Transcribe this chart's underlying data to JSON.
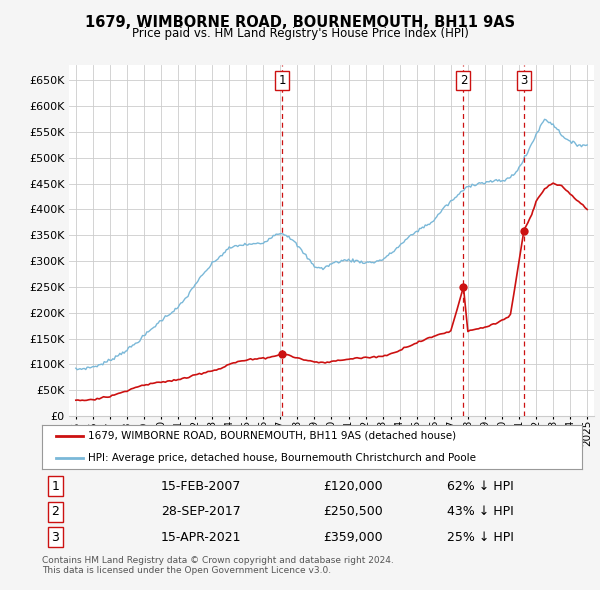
{
  "title": "1679, WIMBORNE ROAD, BOURNEMOUTH, BH11 9AS",
  "subtitle": "Price paid vs. HM Land Registry's House Price Index (HPI)",
  "ylim": [
    0,
    680000
  ],
  "yticks": [
    0,
    50000,
    100000,
    150000,
    200000,
    250000,
    300000,
    350000,
    400000,
    450000,
    500000,
    550000,
    600000,
    650000
  ],
  "hpi_color": "#7ab8d8",
  "sale_color": "#cc1111",
  "background_color": "#f5f5f5",
  "plot_bg_color": "#ffffff",
  "legend_label_sale": "1679, WIMBORNE ROAD, BOURNEMOUTH, BH11 9AS (detached house)",
  "legend_label_hpi": "HPI: Average price, detached house, Bournemouth Christchurch and Poole",
  "transactions": [
    {
      "number": 1,
      "date_label": "15-FEB-2007",
      "price": 120000,
      "price_str": "£120,000",
      "pct": "62%",
      "x_year": 2007.12
    },
    {
      "number": 2,
      "date_label": "28-SEP-2017",
      "price": 250500,
      "price_str": "£250,500",
      "pct": "43%",
      "x_year": 2017.74
    },
    {
      "number": 3,
      "date_label": "15-APR-2021",
      "price": 359000,
      "price_str": "£359,000",
      "pct": "25%",
      "x_year": 2021.29
    }
  ],
  "footer_text": "Contains HM Land Registry data © Crown copyright and database right 2024.\nThis data is licensed under the Open Government Licence v3.0.",
  "xmin": 1994.6,
  "xmax": 2025.4,
  "hpi_years": [
    1995,
    1995.5,
    1996,
    1996.5,
    1997,
    1997.5,
    1998,
    1998.5,
    1999,
    1999.5,
    2000,
    2000.5,
    2001,
    2001.5,
    2002,
    2002.5,
    2003,
    2003.5,
    2004,
    2004.5,
    2005,
    2005.5,
    2006,
    2006.5,
    2007,
    2007.5,
    2008,
    2008.5,
    2009,
    2009.5,
    2010,
    2010.5,
    2011,
    2011.5,
    2012,
    2012.5,
    2013,
    2013.5,
    2014,
    2014.5,
    2015,
    2015.5,
    2016,
    2016.5,
    2017,
    2017.5,
    2018,
    2018.5,
    2019,
    2019.5,
    2020,
    2020.5,
    2021,
    2021.5,
    2022,
    2022.5,
    2023,
    2023.5,
    2024,
    2024.5,
    2025
  ],
  "hpi_vals": [
    90000,
    92000,
    95000,
    100000,
    108000,
    118000,
    128000,
    140000,
    155000,
    170000,
    185000,
    198000,
    210000,
    230000,
    255000,
    275000,
    295000,
    310000,
    325000,
    330000,
    332000,
    333000,
    335000,
    348000,
    355000,
    348000,
    330000,
    310000,
    290000,
    285000,
    295000,
    300000,
    302000,
    300000,
    297000,
    298000,
    303000,
    315000,
    330000,
    345000,
    358000,
    368000,
    378000,
    400000,
    415000,
    430000,
    445000,
    450000,
    452000,
    455000,
    455000,
    462000,
    480000,
    510000,
    545000,
    575000,
    565000,
    545000,
    530000,
    525000,
    525000
  ],
  "sale_years": [
    1995,
    1995.5,
    1996,
    1996.5,
    1997,
    1997.5,
    1998,
    1998.5,
    1999,
    1999.5,
    2000,
    2000.5,
    2001,
    2001.5,
    2002,
    2002.5,
    2003,
    2003.5,
    2004,
    2004.5,
    2005,
    2005.5,
    2006,
    2006.5,
    2007.12,
    2007.5,
    2008,
    2008.5,
    2009,
    2009.5,
    2010,
    2010.5,
    2011,
    2011.5,
    2012,
    2012.5,
    2013,
    2013.5,
    2014,
    2014.5,
    2015,
    2015.5,
    2016,
    2016.5,
    2017,
    2017.74,
    2018,
    2018.5,
    2019,
    2019.5,
    2020,
    2020.5,
    2021.29,
    2021.75,
    2022,
    2022.5,
    2023,
    2023.5,
    2024,
    2024.5,
    2025
  ],
  "sale_vals": [
    30000,
    30500,
    32000,
    35000,
    38000,
    43000,
    50000,
    55000,
    60000,
    63000,
    65000,
    68000,
    70000,
    74000,
    80000,
    84000,
    88000,
    92000,
    100000,
    105000,
    108000,
    110000,
    112000,
    115000,
    120000,
    118000,
    112000,
    108000,
    105000,
    103000,
    105000,
    108000,
    110000,
    112000,
    113000,
    114000,
    116000,
    120000,
    128000,
    135000,
    142000,
    148000,
    154000,
    160000,
    164000,
    250500,
    165000,
    168000,
    172000,
    178000,
    185000,
    195000,
    359000,
    390000,
    415000,
    440000,
    450000,
    445000,
    430000,
    415000,
    400000
  ]
}
